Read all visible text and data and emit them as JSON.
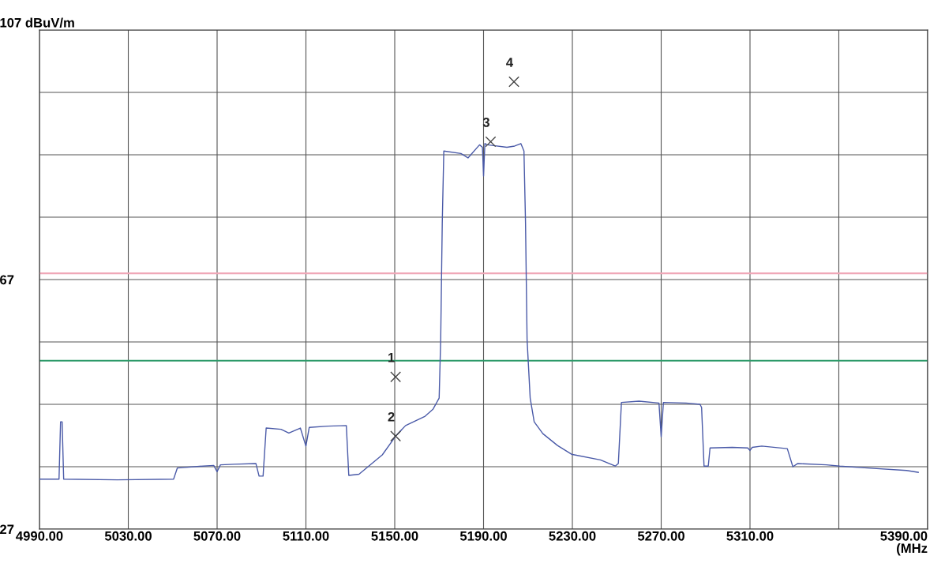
{
  "chart_data": {
    "type": "line",
    "xlabel": "(MHz",
    "xlim": [
      4990,
      5390
    ],
    "ylim": [
      27,
      107
    ],
    "xticks": [
      {
        "value": 4990,
        "label": "4990.00"
      },
      {
        "value": 5030,
        "label": "5030.00"
      },
      {
        "value": 5070,
        "label": "5070.00"
      },
      {
        "value": 5110,
        "label": "5110.00"
      },
      {
        "value": 5150,
        "label": "5150.00"
      },
      {
        "value": 5190,
        "label": "5190.00"
      },
      {
        "value": 5230,
        "label": "5230.00"
      },
      {
        "value": 5270,
        "label": "5270.00"
      },
      {
        "value": 5310,
        "label": "5310.00"
      },
      {
        "value": 5350,
        "label": null
      },
      {
        "value": 5390,
        "label": "5390.00"
      }
    ],
    "yticks": [
      27,
      {
        "value": 37,
        "label": null
      },
      {
        "value": 47,
        "label": null
      },
      {
        "value": 57,
        "label": null
      },
      67,
      {
        "value": 77,
        "label": null
      },
      {
        "value": 87,
        "label": null
      },
      {
        "value": 97,
        "label": null
      },
      {
        "value": 107,
        "label": "107 dBuV/m"
      }
    ],
    "grid": true,
    "series": [
      {
        "color": "#4a5aa8",
        "x": [
          4990,
          4998.8,
          4999.5,
          5000.2,
          5000.9,
          5025.1,
          5050.4,
          5052.1,
          5063.7,
          5068.5,
          5070,
          5071.5,
          5077.7,
          5087.5,
          5088.9,
          5090.7,
          5092.1,
          5098.8,
          5102.3,
          5107.5,
          5110,
          5111.5,
          5119.8,
          5128.2,
          5129.3,
          5133.9,
          5144.4,
          5150.4,
          5154.9,
          5163.7,
          5167.2,
          5170,
          5170.7,
          5171.4,
          5172.1,
          5179.8,
          5183,
          5188.2,
          5189.5,
          5190,
          5190.6,
          5191.8,
          5200.5,
          5204,
          5206.8,
          5208.2,
          5208.9,
          5209.6,
          5211,
          5212.8,
          5216.7,
          5223.3,
          5229.6,
          5242.6,
          5249.3,
          5250.7,
          5252.1,
          5260,
          5269,
          5270,
          5271,
          5281.2,
          5287.5,
          5288.2,
          5289.3,
          5291.2,
          5292,
          5302,
          5309,
          5310,
          5311,
          5315.3,
          5326.8,
          5329.3,
          5331.4,
          5344.4,
          5350.4,
          5363,
          5380.5,
          5385.8
        ],
        "values": [
          35.0,
          35.0,
          44.2,
          44.2,
          35.0,
          34.9,
          35.0,
          36.8,
          37.1,
          37.2,
          36.2,
          37.3,
          37.4,
          37.5,
          35.5,
          35.5,
          43.2,
          43.0,
          42.4,
          43.2,
          40.3,
          43.3,
          43.5,
          43.6,
          35.6,
          35.8,
          38.9,
          41.9,
          43.6,
          45.1,
          46.2,
          48.0,
          57.4,
          76.0,
          87.6,
          87.2,
          86.5,
          88.6,
          88.2,
          83.6,
          88.8,
          88.6,
          88.2,
          88.4,
          88.8,
          87.6,
          76.1,
          57.4,
          48.0,
          44.2,
          42.3,
          40.4,
          39.0,
          38.1,
          37.1,
          37.5,
          47.3,
          47.5,
          47.2,
          41.8,
          47.3,
          47.2,
          47.0,
          46.5,
          37.1,
          37.1,
          40.0,
          40.1,
          40.0,
          39.6,
          40.1,
          40.3,
          39.9,
          37.0,
          37.5,
          37.3,
          37.1,
          36.8,
          36.4,
          36.1
        ]
      },
      {
        "type": "scatter",
        "color": "#444444",
        "marker": "cross",
        "x": [
          5150.4,
          5150.4,
          5193.2,
          5203.7
        ],
        "values": [
          51.4,
          41.9,
          89.1,
          98.7
        ]
      }
    ],
    "ref_lines": [
      {
        "axis": "y",
        "value": 68,
        "color": "#f0a8b8"
      },
      {
        "axis": "y",
        "value": 54,
        "color": "#2e9a6a"
      }
    ],
    "annotations": [
      {
        "text": "1",
        "x": 5150.4,
        "y": 51.4
      },
      {
        "text": "2",
        "x": 5150.4,
        "y": 41.9
      },
      {
        "text": "3",
        "x": 5193.2,
        "y": 89.1
      },
      {
        "text": "4",
        "x": 5203.7,
        "y": 98.7
      }
    ]
  }
}
